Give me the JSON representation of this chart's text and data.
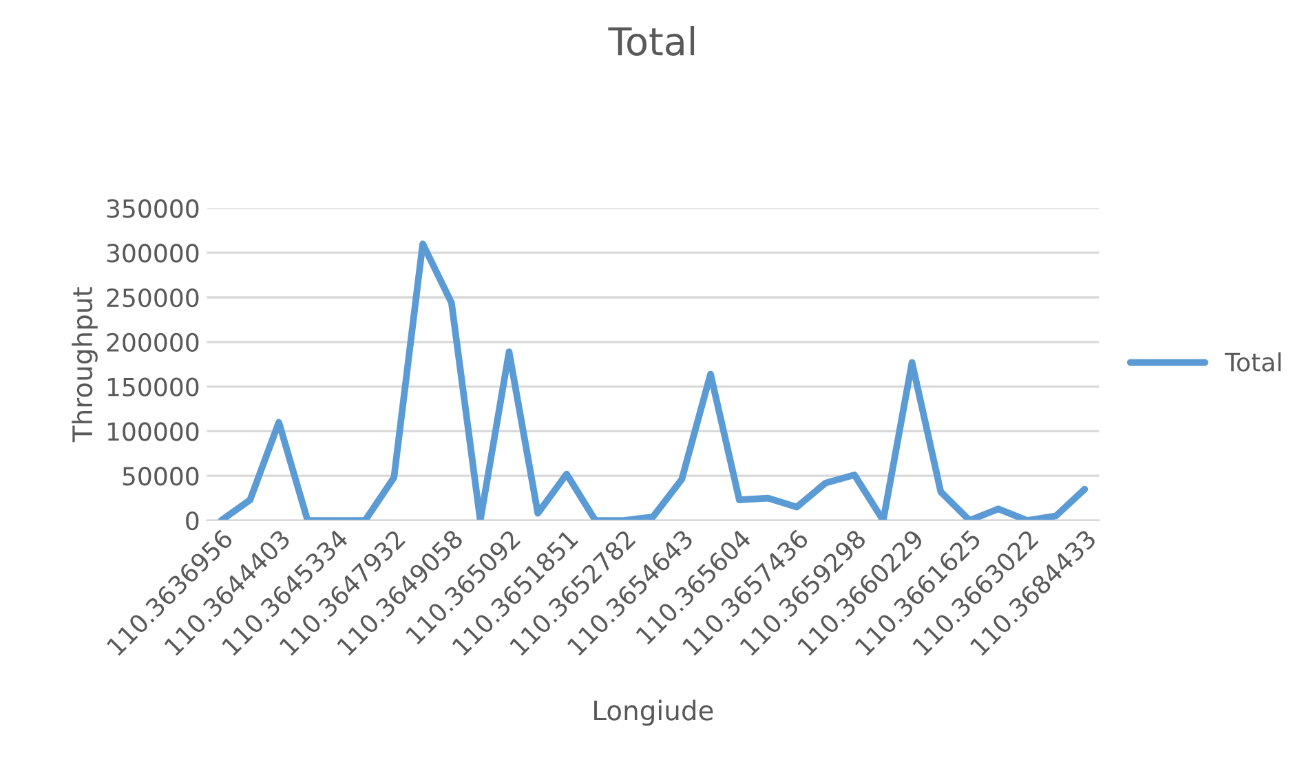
{
  "chart_data": {
    "type": "line",
    "title": "Total",
    "xlabel": "Longiude",
    "ylabel": "Throughput",
    "categories": [
      "110.3636956",
      null,
      "110.3644403",
      null,
      "110.3645334",
      null,
      "110.3647932",
      null,
      "110.3649058",
      null,
      "110.365092",
      null,
      "110.3651851",
      null,
      "110.3652782",
      null,
      "110.3654643",
      null,
      "110.365604",
      null,
      "110.3657436",
      null,
      "110.3659298",
      null,
      "110.3660229",
      null,
      "110.3661625",
      null,
      "110.3663022",
      null,
      "110.3684433"
    ],
    "series": [
      {
        "name": "Total",
        "color": "#5b9bd5",
        "values": [
          0,
          23000,
          110000,
          0,
          0,
          0,
          48000,
          310000,
          244000,
          0,
          189000,
          8000,
          52000,
          0,
          0,
          4000,
          46000,
          164000,
          23000,
          25000,
          15000,
          42000,
          51000,
          0,
          177000,
          32000,
          0,
          13000,
          0,
          5000,
          35000
        ]
      }
    ],
    "ylim": [
      0,
      350000
    ],
    "yticks": [
      0,
      50000,
      100000,
      150000,
      200000,
      250000,
      300000,
      350000
    ],
    "grid": "y",
    "legend": "right",
    "marker": "none",
    "line_style": "solid"
  }
}
